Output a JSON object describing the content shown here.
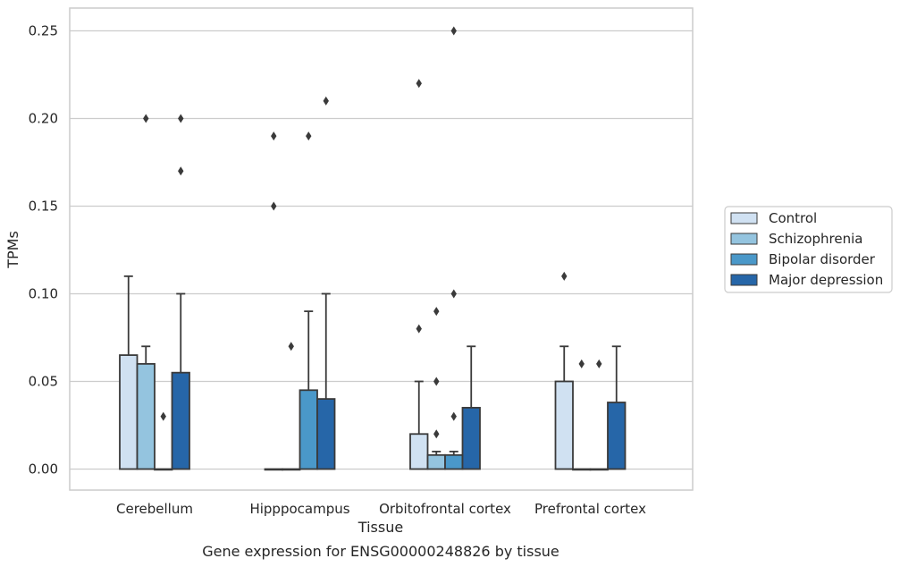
{
  "chart_data": {
    "type": "bar",
    "title": "Gene expression for ENSG00000248826 by tissue",
    "xlabel": "Tissue",
    "ylabel": "TPMs",
    "ylim": [
      -0.012,
      0.263
    ],
    "yticks": [
      "0.00",
      "0.05",
      "0.10",
      "0.15",
      "0.20",
      "0.25"
    ],
    "grid": true,
    "legend_position": "right",
    "categories": [
      "Cerebellum",
      "Hipppocampus",
      "Orbitofrontal cortex",
      "Prefrontal cortex"
    ],
    "series": [
      {
        "name": "Control",
        "color": "#d0e1f2",
        "values": [
          0.065,
          0.0,
          0.02,
          0.05
        ],
        "whisker_high": [
          0.11,
          null,
          0.05,
          0.07
        ],
        "outliers": [
          [],
          [
            0.15,
            0.19
          ],
          [
            0.08,
            0.22
          ],
          [
            0.11
          ]
        ]
      },
      {
        "name": "Schizophrenia",
        "color": "#94c4df",
        "values": [
          0.06,
          0.0,
          0.008,
          0.0
        ],
        "whisker_high": [
          0.07,
          null,
          0.01,
          null
        ],
        "outliers": [
          [
            0.2
          ],
          [
            0.07
          ],
          [
            0.02,
            0.05,
            0.09
          ],
          [
            0.06
          ]
        ]
      },
      {
        "name": "Bipolar disorder",
        "color": "#4a98c9",
        "values": [
          0.0,
          0.045,
          0.008,
          0.0
        ],
        "whisker_high": [
          null,
          0.09,
          0.01,
          null
        ],
        "outliers": [
          [
            0.03
          ],
          [
            0.19
          ],
          [
            0.03,
            0.1,
            0.25
          ],
          [
            0.06
          ]
        ]
      },
      {
        "name": "Major depression",
        "color": "#2666a8",
        "values": [
          0.055,
          0.04,
          0.035,
          0.038
        ],
        "whisker_high": [
          0.1,
          0.1,
          0.07,
          0.07
        ],
        "outliers": [
          [
            0.17,
            0.2
          ],
          [
            0.21
          ],
          [],
          []
        ]
      }
    ]
  },
  "colors": {
    "grid": "#cccccc",
    "frame": "#cccccc",
    "edge": "#3a3a3a",
    "outlier": "#3a3a3a"
  }
}
